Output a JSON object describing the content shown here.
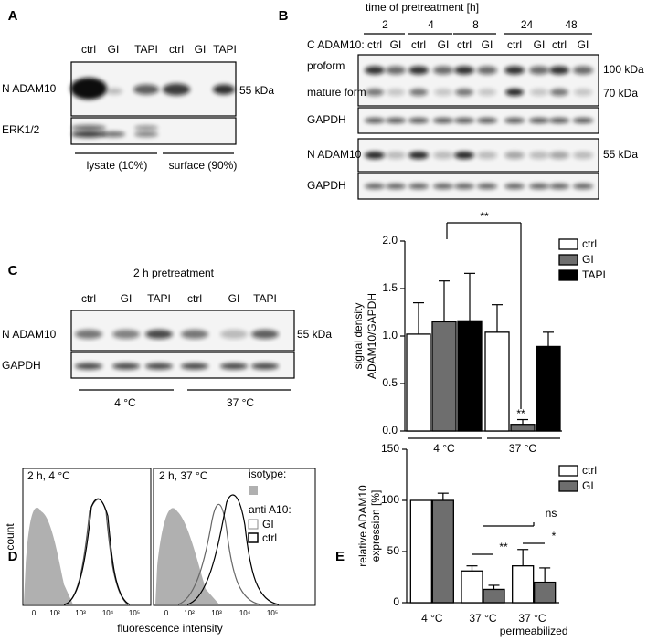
{
  "panels": {
    "A": {
      "label": "A",
      "lanes": [
        "ctrl",
        "GI",
        "TAPI",
        "ctrl",
        "GI",
        "TAPI"
      ],
      "rows": [
        "N ADAM10",
        "ERK1/2"
      ],
      "marker": "55 kDa",
      "groups": [
        "lysate (10%)",
        "surface (90%)"
      ]
    },
    "B": {
      "label": "B",
      "title": "time of pretreatment  [h]",
      "times": [
        "2",
        "4",
        "8",
        "24",
        "48"
      ],
      "lanes": [
        "ctrl",
        "GI",
        "ctrl",
        "GI",
        "ctrl",
        "GI",
        "ctrl",
        "GI",
        "ctrl",
        "GI"
      ],
      "rows": [
        "C ADAM10:",
        "proform",
        "mature form",
        "GAPDH",
        "N ADAM10",
        "GAPDH"
      ],
      "markers": [
        "100 kDa",
        "70 kDa",
        "55 kDa"
      ]
    },
    "C": {
      "label": "C",
      "title": "2 h pretreatment",
      "lanes": [
        "ctrl",
        "GI",
        "TAPI",
        "ctrl",
        "GI",
        "TAPI"
      ],
      "rows": [
        "N ADAM10",
        "GAPDH"
      ],
      "marker": "55 kDa",
      "groups": [
        "4 °C",
        "37 °C"
      ]
    },
    "D": {
      "label": "D",
      "plots": [
        "2 h,  4 °C",
        "2 h, 37 °C"
      ],
      "ylabel": "count",
      "xlabel": "fluorescence intensity",
      "xticks": [
        "0",
        "10²",
        "10³",
        "10⁴",
        "10⁵"
      ],
      "legend": [
        "isotype:",
        "anti A10:",
        "GI",
        "ctrl"
      ]
    },
    "E": {
      "label": "E"
    }
  },
  "chart_data": [
    {
      "type": "bar",
      "ylabel": [
        "signal density",
        "ADAM10/GAPDH"
      ],
      "categories": [
        "4 °C",
        "37 °C"
      ],
      "ylim": [
        0,
        2
      ],
      "yticks": [
        {
          "value": 0,
          "label": "0.0"
        },
        {
          "value": 0.5,
          "label": "0.5"
        },
        {
          "value": 1,
          "label": "1.0"
        },
        {
          "value": 1.5,
          "label": "1.5"
        },
        {
          "value": 2,
          "label": "2.0"
        }
      ],
      "series": [
        {
          "name": "ctrl",
          "color": "#ffffff",
          "values": [
            1.02,
            1.04
          ],
          "errors": [
            0.33,
            0.29
          ]
        },
        {
          "name": "GI",
          "color": "#6e6e6e",
          "values": [
            1.15,
            0.07
          ],
          "errors": [
            0.43,
            0.05
          ]
        },
        {
          "name": "TAPI",
          "color": "#000000",
          "values": [
            1.16,
            0.89
          ],
          "errors": [
            0.5,
            0.15
          ]
        }
      ],
      "annotations": [
        "**",
        "**"
      ]
    },
    {
      "type": "bar",
      "ylabel": [
        "relative ADAM10",
        "expression [%]"
      ],
      "categories": [
        "4 °C",
        "37 °C",
        "37 °C permeabilized"
      ],
      "ylim": [
        0,
        150
      ],
      "yticks": [
        0,
        50,
        100,
        150
      ],
      "series": [
        {
          "name": "ctrl",
          "color": "#ffffff",
          "values": [
            100,
            31,
            36
          ],
          "errors": [
            null,
            5,
            16
          ]
        },
        {
          "name": "GI",
          "color": "#6e6e6e",
          "values": [
            100,
            13,
            20
          ],
          "errors": [
            7,
            4,
            14
          ]
        }
      ],
      "annotations": [
        "ns",
        "**",
        "*"
      ]
    }
  ]
}
